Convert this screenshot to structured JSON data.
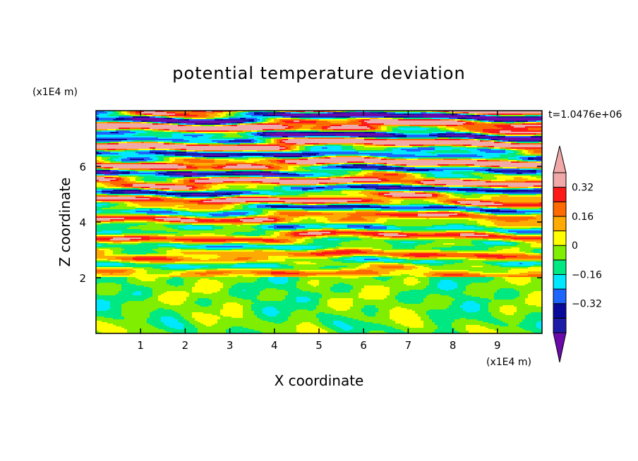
{
  "chart_data": {
    "type": "heatmap",
    "title": "potential temperature deviation",
    "xlabel": "X coordinate",
    "ylabel": "Z coordinate",
    "x_unit_label": "(x1E4 m)",
    "y_unit_label": "(x1E4 m)",
    "time_label": "t=1.0476e+06",
    "xlim": [
      0,
      10
    ],
    "ylim": [
      0,
      8
    ],
    "x_ticks": [
      1,
      2,
      3,
      4,
      5,
      6,
      7,
      8,
      9
    ],
    "x_tick_labels": [
      "1",
      "2",
      "3",
      "4",
      "5",
      "6",
      "7",
      "8",
      "9"
    ],
    "y_ticks": [
      2,
      4,
      6
    ],
    "y_tick_labels": [
      "2",
      "4",
      "6"
    ],
    "colorbar": {
      "levels": [
        -0.48,
        -0.4,
        -0.32,
        -0.24,
        -0.16,
        -0.08,
        0,
        0.08,
        0.16,
        0.24,
        0.32,
        0.4
      ],
      "colors": [
        "#1c1ca8",
        "#0a0a9a",
        "#1e64ff",
        "#00e8ff",
        "#00e882",
        "#80ee00",
        "#ffff00",
        "#ffaa00",
        "#ff6a00",
        "#ff1a1a",
        "#f0a8a8"
      ],
      "under_color": "#6a0aa8",
      "over_color": "#f0a8a8",
      "tick_values": [
        0.32,
        0.16,
        0,
        -0.16,
        -0.32
      ],
      "tick_labels": [
        "0.32",
        "0.16",
        "0",
        "−0.16",
        "−0.32"
      ],
      "extend": "both"
    },
    "field_description_bands": [
      {
        "z_from": 0,
        "z_to": 2.05,
        "dominant_value": 0.0
      },
      {
        "z_from": 2.05,
        "z_to": 4.5,
        "dominant_value": 0.05
      },
      {
        "z_from": 4.5,
        "z_to": 8.0,
        "dominant_value": 0.0
      }
    ]
  }
}
